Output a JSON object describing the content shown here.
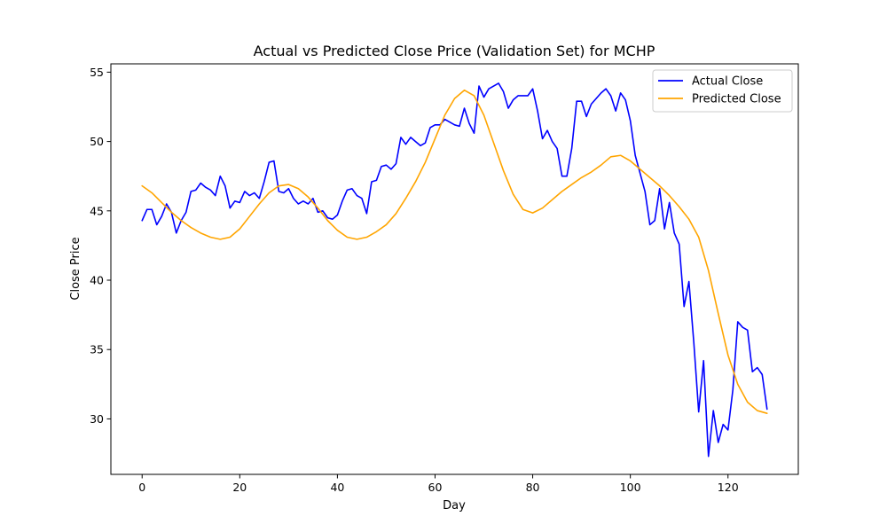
{
  "chart_data": {
    "type": "line",
    "title": "Actual vs Predicted Close Price (Validation Set) for MCHP",
    "xlabel": "Day",
    "ylabel": "Close Price",
    "xlim": [
      -6.4,
      134.4
    ],
    "ylim": [
      26.0,
      55.6
    ],
    "xticks": [
      0,
      20,
      40,
      60,
      80,
      100,
      120
    ],
    "yticks": [
      30,
      35,
      40,
      45,
      50,
      55
    ],
    "grid": false,
    "legend_position": "top-right",
    "series": [
      {
        "name": "Actual Close",
        "color": "#0000ff",
        "x": [
          0,
          1,
          2,
          3,
          4,
          5,
          6,
          7,
          8,
          9,
          10,
          11,
          12,
          13,
          14,
          15,
          16,
          17,
          18,
          19,
          20,
          21,
          22,
          23,
          24,
          25,
          26,
          27,
          28,
          29,
          30,
          31,
          32,
          33,
          34,
          35,
          36,
          37,
          38,
          39,
          40,
          41,
          42,
          43,
          44,
          45,
          46,
          47,
          48,
          49,
          50,
          51,
          52,
          53,
          54,
          55,
          56,
          57,
          58,
          59,
          60,
          61,
          62,
          63,
          64,
          65,
          66,
          67,
          68,
          69,
          70,
          71,
          72,
          73,
          74,
          75,
          76,
          77,
          78,
          79,
          80,
          81,
          82,
          83,
          84,
          85,
          86,
          87,
          88,
          89,
          90,
          91,
          92,
          93,
          94,
          95,
          96,
          97,
          98,
          99,
          100,
          101,
          102,
          103,
          104,
          105,
          106,
          107,
          108,
          109,
          110,
          111,
          112,
          113,
          114,
          115,
          116,
          117,
          118,
          119,
          120,
          121,
          122,
          123,
          124,
          125,
          126,
          127,
          128
        ],
        "y": [
          44.3,
          45.1,
          45.1,
          44.0,
          44.6,
          45.5,
          44.9,
          43.4,
          44.3,
          44.9,
          46.4,
          46.5,
          47.0,
          46.7,
          46.5,
          46.1,
          47.5,
          46.8,
          45.2,
          45.7,
          45.6,
          46.4,
          46.1,
          46.3,
          45.9,
          47.1,
          48.5,
          48.6,
          46.4,
          46.3,
          46.6,
          45.9,
          45.5,
          45.7,
          45.5,
          45.9,
          44.9,
          45.0,
          44.5,
          44.4,
          44.7,
          45.7,
          46.5,
          46.6,
          46.1,
          45.9,
          44.8,
          47.1,
          47.2,
          48.2,
          48.3,
          48.0,
          48.4,
          50.3,
          49.8,
          50.3,
          50.0,
          49.7,
          49.9,
          51.0,
          51.2,
          51.2,
          51.6,
          51.4,
          51.2,
          51.1,
          52.4,
          51.3,
          50.6,
          54.0,
          53.2,
          53.8,
          54.0,
          54.2,
          53.6,
          52.4,
          53.0,
          53.3,
          53.3,
          53.3,
          53.8,
          52.2,
          50.2,
          50.8,
          50.0,
          49.5,
          47.5,
          47.5,
          49.5,
          52.9,
          52.9,
          51.8,
          52.7,
          53.1,
          53.5,
          53.8,
          53.3,
          52.2,
          53.5,
          53.0,
          51.5,
          49.0,
          47.7,
          46.4,
          44.0,
          44.3,
          46.6,
          43.7,
          45.6,
          43.4,
          42.6,
          38.1,
          39.9,
          35.5,
          30.5,
          34.2,
          27.3,
          30.6,
          28.3,
          29.6,
          29.2,
          32.1,
          37.0,
          36.6,
          36.4,
          33.4,
          33.7,
          33.2,
          30.7
        ]
      },
      {
        "name": "Predicted Close",
        "color": "#ffa500",
        "x": [
          0,
          2,
          4,
          6,
          8,
          10,
          12,
          14,
          16,
          18,
          20,
          22,
          24,
          26,
          28,
          30,
          32,
          34,
          36,
          38,
          40,
          42,
          44,
          46,
          48,
          50,
          52,
          54,
          56,
          58,
          60,
          62,
          64,
          66,
          68,
          70,
          72,
          74,
          76,
          78,
          80,
          82,
          84,
          86,
          88,
          90,
          92,
          94,
          96,
          98,
          100,
          102,
          104,
          106,
          108,
          110,
          112,
          114,
          116,
          118,
          120,
          122,
          124,
          126,
          128
        ],
        "y": [
          46.8,
          46.3,
          45.6,
          44.9,
          44.3,
          43.8,
          43.4,
          43.1,
          42.95,
          43.1,
          43.7,
          44.6,
          45.5,
          46.3,
          46.8,
          46.9,
          46.6,
          46.0,
          45.2,
          44.3,
          43.6,
          43.1,
          42.95,
          43.1,
          43.5,
          44.0,
          44.8,
          45.9,
          47.1,
          48.5,
          50.2,
          51.9,
          53.1,
          53.7,
          53.3,
          51.9,
          49.9,
          47.9,
          46.2,
          45.1,
          44.85,
          45.2,
          45.8,
          46.4,
          46.9,
          47.4,
          47.8,
          48.3,
          48.9,
          49.0,
          48.6,
          48.0,
          47.4,
          46.8,
          46.1,
          45.3,
          44.4,
          43.1,
          40.7,
          37.6,
          34.6,
          32.5,
          31.2,
          30.6,
          30.4
        ]
      }
    ]
  }
}
